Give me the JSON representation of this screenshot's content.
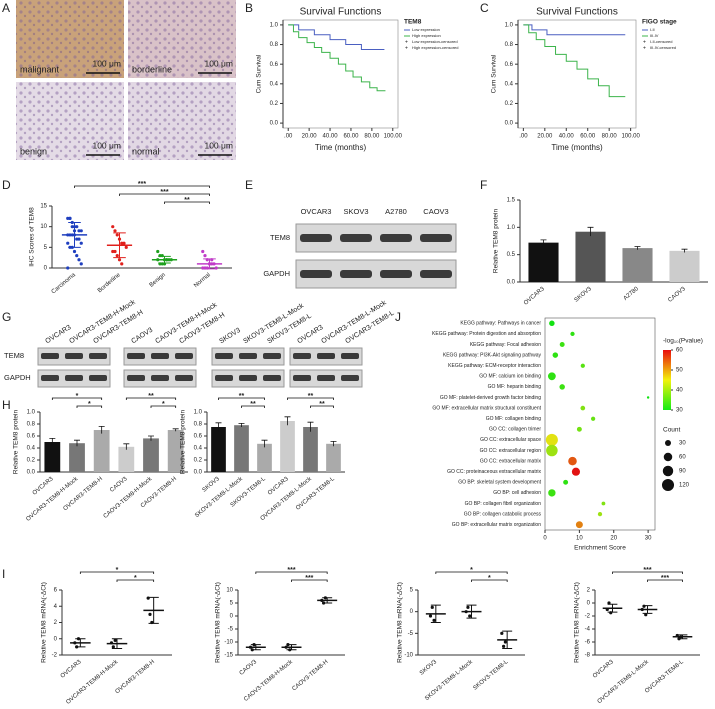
{
  "panel_labels": [
    "A",
    "B",
    "C",
    "D",
    "E",
    "F",
    "G",
    "H",
    "J",
    "I"
  ],
  "images": [
    {
      "label": "malignant",
      "scale": "100 μm"
    },
    {
      "label": "borderline",
      "scale": "100 μm"
    },
    {
      "label": "benign",
      "scale": "100 μm"
    },
    {
      "label": "normal",
      "scale": "100 μm"
    }
  ],
  "blots": [
    {
      "lanes": [
        "OVCAR3",
        "SKOV3",
        "A2780",
        "CAOV3"
      ],
      "rows": [
        "TEM8",
        "GAPDH"
      ]
    },
    {
      "lanes": [
        "OVCAR3",
        "OVCAR3-TEM8-H-Mock",
        "OVCAR3-TEM8-H",
        "CAOV3",
        "CAOV3-TEM8-H-Mock",
        "CAOV3-TEM8-H",
        "SKOV3",
        "SKOV3-TEM8-L-Mock",
        "SKOV3-TEM8-L",
        "OVCAR3",
        "OVCAR3-TEM8-L-Mock",
        "OVCAR3-TEM8-L"
      ],
      "rows": [
        "TEM8",
        "GAPDH"
      ]
    }
  ],
  "chart_data": [
    {
      "type": "line",
      "title": "Survival Functions",
      "legend_title": "TEM8",
      "xlabel": "Time (months)",
      "ylabel": "Cum Survival",
      "xlim": [
        -5,
        105
      ],
      "xticks": [
        {
          "value": 0,
          "label": ".00"
        },
        {
          "value": 20,
          "label": "20.00"
        },
        {
          "value": 40,
          "label": "40.00"
        },
        {
          "value": 60,
          "label": "60.00"
        },
        {
          "value": 80,
          "label": "80.00"
        },
        {
          "value": 100,
          "label": "100.00"
        }
      ],
      "ylim": [
        -0.05,
        1.05
      ],
      "yticks": [
        {
          "value": 0,
          "label": "0.0"
        },
        0.2,
        0.4,
        0.6,
        0.8,
        {
          "value": 1,
          "label": "1.0"
        }
      ],
      "censored": [
        "Low expression-censored",
        "High expression-censored"
      ],
      "series": [
        {
          "name": "Low expression",
          "color": "#4a5fc1",
          "x": [
            0,
            10,
            10,
            25,
            25,
            40,
            40,
            55,
            55,
            70,
            70,
            92
          ],
          "values": [
            1,
            1,
            0.95,
            0.95,
            0.9,
            0.9,
            0.85,
            0.85,
            0.8,
            0.8,
            0.75,
            0.75
          ]
        },
        {
          "name": "High expression",
          "color": "#3cb44b",
          "x": [
            0,
            5,
            5,
            10,
            10,
            18,
            18,
            25,
            25,
            32,
            32,
            40,
            40,
            48,
            48,
            55,
            55,
            62,
            62,
            70,
            70,
            78,
            78,
            85,
            85,
            93
          ],
          "values": [
            1,
            1,
            0.93,
            0.93,
            0.87,
            0.87,
            0.82,
            0.82,
            0.77,
            0.77,
            0.72,
            0.72,
            0.66,
            0.66,
            0.6,
            0.6,
            0.53,
            0.53,
            0.47,
            0.47,
            0.42,
            0.42,
            0.36,
            0.36,
            0.33,
            0.33
          ]
        }
      ]
    },
    {
      "type": "line",
      "title": "Survival Functions",
      "legend_title": "FIGO stage",
      "xlabel": "Time (months)",
      "ylabel": "Cum Survival",
      "xlim": [
        -5,
        105
      ],
      "xticks": [
        {
          "value": 0,
          "label": ".00"
        },
        {
          "value": 20,
          "label": "20.00"
        },
        {
          "value": 40,
          "label": "40.00"
        },
        {
          "value": 60,
          "label": "60.00"
        },
        {
          "value": 80,
          "label": "80.00"
        },
        {
          "value": 100,
          "label": "100.00"
        }
      ],
      "ylim": [
        -0.05,
        1.05
      ],
      "yticks": [
        {
          "value": 0,
          "label": "0.0"
        },
        0.2,
        0.4,
        0.6,
        0.8,
        {
          "value": 1,
          "label": "1.0"
        }
      ],
      "censored": [
        "I-II-censored",
        "III-IV-censored"
      ],
      "series": [
        {
          "name": "I-II",
          "color": "#4a5fc1",
          "x": [
            0,
            8,
            8,
            22,
            22,
            95
          ],
          "values": [
            1,
            1,
            0.95,
            0.95,
            0.9,
            0.9
          ]
        },
        {
          "name": "III-IV",
          "color": "#3cb44b",
          "x": [
            0,
            5,
            5,
            12,
            12,
            20,
            20,
            30,
            30,
            40,
            40,
            50,
            50,
            60,
            60,
            70,
            70,
            80,
            80,
            95
          ],
          "values": [
            1,
            1,
            0.92,
            0.92,
            0.85,
            0.85,
            0.78,
            0.78,
            0.7,
            0.7,
            0.63,
            0.63,
            0.55,
            0.55,
            0.45,
            0.45,
            0.38,
            0.38,
            0.27,
            0.27
          ]
        }
      ]
    },
    {
      "type": "dot",
      "ylabel": "IHC Scores of TEM8",
      "categories": [
        "Carcinoma",
        "Borderline",
        "Benign",
        "Normal"
      ],
      "colors": [
        "#1f3fbf",
        "#e0201c",
        "#1ea01e",
        "#c03cc8"
      ],
      "points": [
        [
          12,
          12,
          11,
          10,
          10,
          9,
          9,
          8,
          8,
          8,
          8,
          7,
          7,
          6,
          6,
          5,
          5,
          4,
          3,
          2,
          1,
          0,
          12,
          10,
          9
        ],
        [
          10,
          9,
          8,
          7,
          6,
          6,
          5,
          4,
          4,
          3,
          2,
          1
        ],
        [
          4,
          3,
          3,
          2,
          2,
          2,
          2,
          2,
          1,
          1,
          1,
          2
        ],
        [
          4,
          3,
          2,
          1,
          1,
          1,
          0,
          0,
          0,
          0,
          1,
          2
        ]
      ],
      "means": [
        8,
        5.5,
        2,
        1
      ],
      "sd": [
        3,
        3,
        0.8,
        1.2
      ],
      "ylim": [
        0,
        15
      ],
      "yticks": [
        0,
        5,
        10,
        15
      ],
      "brackets": [
        {
          "label": "***",
          "between": [
            "Carcinoma",
            "Normal"
          ]
        },
        {
          "label": "***",
          "between": [
            "Borderline",
            "Normal"
          ]
        },
        {
          "label": "**",
          "between": [
            "Benign",
            "Normal"
          ]
        }
      ]
    },
    {
      "type": "bar",
      "ylabel": "Relative TEM8 protein",
      "categories": [
        "OVCAR3",
        "SKOV3",
        "A2780",
        "CAOV3"
      ],
      "values": [
        0.72,
        0.92,
        0.62,
        0.57
      ],
      "errors": [
        0.05,
        0.08,
        0.03,
        0.03
      ],
      "colors": [
        "#111111",
        "#555555",
        "#888888",
        "#cccccc"
      ],
      "ylim": [
        0,
        1.5
      ],
      "yticks": [
        {
          "value": 0,
          "label": "0.0"
        },
        0.5,
        {
          "value": 1,
          "label": "1.0"
        },
        1.5
      ],
      "brackets": []
    },
    {
      "type": "bar",
      "ylabel": "Relative TEM8 protein",
      "categories": [
        "OVCAR3",
        "OVCAR3-TEM8-H-Mock",
        "OVCAR3-TEM8-H",
        "CAOV3",
        "CAOV3-TEM8-H-Mock",
        "CAOV3-TEM8-H"
      ],
      "values": [
        0.5,
        0.48,
        0.7,
        0.42,
        0.56,
        0.7
      ],
      "errors": [
        0.06,
        0.05,
        0.06,
        0.05,
        0.04,
        0.02
      ],
      "colors": [
        "#111111",
        "#777777",
        "#aaaaaa",
        "#cccccc",
        "#777777",
        "#aaaaaa"
      ],
      "ylim": [
        0,
        1
      ],
      "yticks": [
        {
          "value": 0,
          "label": "0.0"
        },
        0.2,
        0.4,
        0.6,
        0.8,
        {
          "value": 1,
          "label": "1.0"
        }
      ],
      "brackets": [
        {
          "label": "*",
          "between": [
            "OVCAR3",
            "OVCAR3-TEM8-H"
          ]
        },
        {
          "label": "*",
          "between": [
            "OVCAR3-TEM8-H-Mock",
            "OVCAR3-TEM8-H"
          ]
        },
        {
          "label": "**",
          "between": [
            "CAOV3",
            "CAOV3-TEM8-H"
          ]
        },
        {
          "label": "*",
          "between": [
            "CAOV3-TEM8-H-Mock",
            "CAOV3-TEM8-H"
          ]
        }
      ]
    },
    {
      "type": "bar",
      "ylabel": "Relative TEM8 protein",
      "categories": [
        "SKOV3",
        "SKOV3-TEM8-L-Mock",
        "SKOV3-TEM8-L",
        "OVCAR3",
        "OVCAR3-TEM8-L-Mock",
        "OVCAR3-TEM8-L"
      ],
      "values": [
        0.75,
        0.78,
        0.47,
        0.85,
        0.75,
        0.47
      ],
      "errors": [
        0.07,
        0.03,
        0.06,
        0.07,
        0.08,
        0.04
      ],
      "colors": [
        "#111111",
        "#777777",
        "#aaaaaa",
        "#cccccc",
        "#777777",
        "#aaaaaa"
      ],
      "ylim": [
        0,
        1
      ],
      "yticks": [
        {
          "value": 0,
          "label": "0.0"
        },
        0.2,
        0.4,
        0.6,
        0.8,
        {
          "value": 1,
          "label": "1.0"
        }
      ],
      "brackets": [
        {
          "label": "**",
          "between": [
            "SKOV3",
            "SKOV3-TEM8-L"
          ]
        },
        {
          "label": "**",
          "between": [
            "SKOV3-TEM8-L-Mock",
            "SKOV3-TEM8-L"
          ]
        },
        {
          "label": "**",
          "between": [
            "OVCAR3",
            "OVCAR3-TEM8-L"
          ]
        },
        {
          "label": "**",
          "between": [
            "OVCAR3-TEM8-L-Mock",
            "OVCAR3-TEM8-L"
          ]
        }
      ]
    },
    {
      "type": "bubble",
      "xlabel": "Enrichment Score",
      "xlim": [
        0,
        32
      ],
      "xticks": [
        0,
        10,
        20,
        30
      ],
      "categories": [
        "KEGG pathway: Pathways in cancer",
        "KEGG pathway: Protein digestion and absorption",
        "KEGG pathway: Focal adhesion",
        "KEGG pathway: PI3K-Akt signaling pathway",
        "KEGG pathway: ECM-receptor interaction",
        "GO MF: calcium ion binding",
        "GO MF: heparin binding",
        "GO MF: platelet-derived growth factor binding",
        "GO MF: extracellular matrix structural constituent",
        "GO MF: collagen binding",
        "GO CC: collagen trimer",
        "GO CC: extracellular space",
        "GO CC: extracellular region",
        "GO CC: extracellular matrix",
        "GO CC: proteinaceous extracellular matrix",
        "GO BP: skeletal system development",
        "GO BP: cell adhesion",
        "GO BP: collagen fibril organization",
        "GO BP: collagen catabolic process",
        "GO BP: extracellular matrix organization"
      ],
      "values": [
        2,
        8,
        5,
        3,
        11,
        2,
        5,
        30,
        11,
        14,
        10,
        2,
        2,
        8,
        9,
        6,
        2,
        17,
        16,
        10
      ],
      "counts": [
        25,
        15,
        20,
        25,
        15,
        50,
        25,
        5,
        18,
        15,
        20,
        120,
        110,
        60,
        55,
        20,
        45,
        12,
        15,
        40
      ],
      "neg_log10_p": [
        30,
        32,
        33,
        32,
        35,
        32,
        33,
        30,
        38,
        36,
        37,
        45,
        40,
        55,
        60,
        32,
        33,
        38,
        40,
        52
      ],
      "color_title": "-log₁₀(Pvalue)",
      "color_ticks": [
        30,
        40,
        50,
        60
      ],
      "size_title": "Count",
      "size_ticks": [
        30,
        60,
        90,
        120
      ]
    },
    {
      "type": "dot",
      "ylabel": "Relative TEM8 mRNA(-ΔCt)",
      "categories": [
        "OVCAR3",
        "OVCAR3-TEM8-H-Mock",
        "OVCAR3-TEM8-H"
      ],
      "colors": [
        "#111111",
        "#111111",
        "#111111"
      ],
      "points": [
        [
          -0.5,
          -1,
          0
        ],
        [
          -0.5,
          -1,
          -0.2
        ],
        [
          5,
          3,
          2
        ]
      ],
      "means": [
        -0.5,
        -0.6,
        3.5
      ],
      "sd": [
        0.5,
        0.6,
        1.6
      ],
      "ylim": [
        -2,
        6
      ],
      "yticks": [
        -2,
        0,
        2,
        4,
        6
      ],
      "brackets": [
        {
          "label": "*",
          "between": [
            "OVCAR3",
            "OVCAR3-TEM8-H"
          ]
        },
        {
          "label": "*",
          "between": [
            "OVCAR3-TEM8-H-Mock",
            "OVCAR3-TEM8-H"
          ]
        }
      ]
    },
    {
      "type": "dot",
      "ylabel": "Relative TEM8 mRNA(-ΔCt)",
      "categories": [
        "CAOV3",
        "CAOV3-TEM8-H-Mock",
        "CAOV3-TEM8-H"
      ],
      "colors": [
        "#111111",
        "#111111",
        "#111111"
      ],
      "points": [
        [
          -12,
          -13,
          -11
        ],
        [
          -12,
          -11,
          -13
        ],
        [
          6,
          5,
          7
        ]
      ],
      "means": [
        -12,
        -12,
        6
      ],
      "sd": [
        1,
        1,
        1
      ],
      "ylim": [
        -15,
        10
      ],
      "yticks": [
        -15,
        -10,
        -5,
        0,
        5,
        10
      ],
      "brackets": [
        {
          "label": "***",
          "between": [
            "CAOV3",
            "CAOV3-TEM8-H"
          ]
        },
        {
          "label": "***",
          "between": [
            "CAOV3-TEM8-H-Mock",
            "CAOV3-TEM8-H"
          ]
        }
      ]
    },
    {
      "type": "dot",
      "ylabel": "Relative TEM8 mRNA(-ΔCt)",
      "categories": [
        "SKOV3",
        "SKOV3-TEM8-L-Mock",
        "SKOV3-TEM8-L"
      ],
      "colors": [
        "#111111",
        "#111111",
        "#111111"
      ],
      "points": [
        [
          -1,
          1,
          -2
        ],
        [
          0,
          1,
          -1
        ],
        [
          -5,
          -8,
          -7
        ]
      ],
      "means": [
        -0.5,
        0,
        -6.5
      ],
      "sd": [
        2,
        1.5,
        2
      ],
      "ylim": [
        -10,
        5
      ],
      "yticks": [
        -10,
        -5,
        0,
        5
      ],
      "brackets": [
        {
          "label": "*",
          "between": [
            "SKOV3",
            "SKOV3-TEM8-L"
          ]
        },
        {
          "label": "*",
          "between": [
            "SKOV3-TEM8-L-Mock",
            "SKOV3-TEM8-L"
          ]
        }
      ]
    },
    {
      "type": "dot",
      "ylabel": "Relative TEM8 mRNA(-ΔCt)",
      "categories": [
        "OVCAR3",
        "OVCAR3-TEM8-L-Mock",
        "OVCAR3-TEM8-L"
      ],
      "colors": [
        "#111111",
        "#111111",
        "#111111"
      ],
      "points": [
        [
          -1,
          0,
          -1.5
        ],
        [
          -1,
          -0.5,
          -1.8
        ],
        [
          -5,
          -5.5,
          -5.2
        ]
      ],
      "means": [
        -0.8,
        -1,
        -5.2
      ],
      "sd": [
        0.6,
        0.6,
        0.3
      ],
      "ylim": [
        -8,
        2
      ],
      "yticks": [
        -8,
        -6,
        -4,
        -2,
        0,
        2
      ],
      "brackets": [
        {
          "label": "***",
          "between": [
            "OVCAR3",
            "OVCAR3-TEM8-L"
          ]
        },
        {
          "label": "***",
          "between": [
            "OVCAR3-TEM8-L-Mock",
            "OVCAR3-TEM8-L"
          ]
        }
      ]
    }
  ]
}
